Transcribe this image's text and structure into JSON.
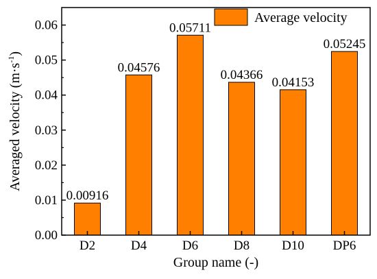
{
  "chart_data": {
    "type": "bar",
    "categories": [
      "D2",
      "D4",
      "D6",
      "D8",
      "D10",
      "DP6"
    ],
    "series": [
      {
        "name": "Average velocity",
        "values": [
          0.00916,
          0.04576,
          0.05711,
          0.04366,
          0.04153,
          0.05245
        ],
        "color": "#ff8000"
      }
    ],
    "data_labels": [
      "0.00916",
      "0.04576",
      "0.05711",
      "0.04366",
      "0.04153",
      "0.05245"
    ],
    "xlabel": "Group name (-)",
    "ylabel_main": "Averaged velocity (m·s",
    "ylabel_sup": "-1",
    "ylabel_close": ")",
    "ylim": [
      0,
      0.065
    ],
    "yticks": [
      "0.00",
      "0.01",
      "0.02",
      "0.03",
      "0.04",
      "0.05",
      "0.06"
    ],
    "ytick_values": [
      0,
      0.01,
      0.02,
      0.03,
      0.04,
      0.05,
      0.06
    ],
    "legend_position": "top-right",
    "grid": false
  }
}
